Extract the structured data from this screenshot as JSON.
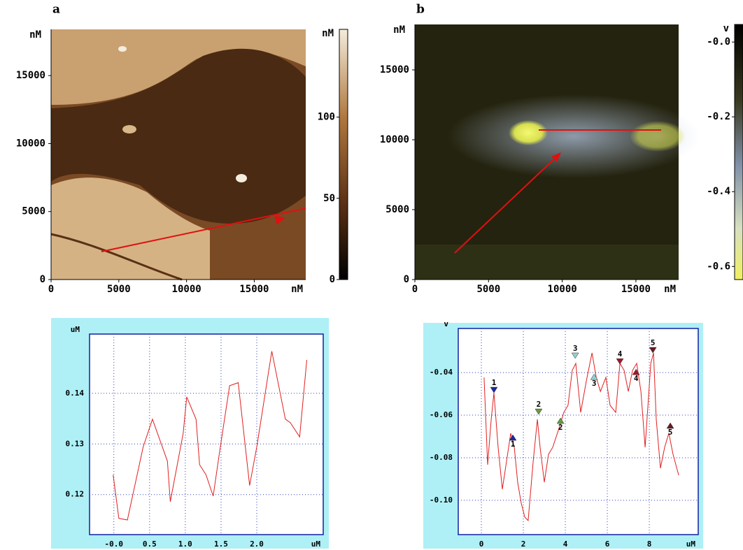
{
  "chart_data": [
    {
      "type": "image",
      "panel": "a",
      "x_label": "nM",
      "y_label": "nM",
      "xlim": [
        0,
        18800
      ],
      "ylim": [
        0,
        18400
      ],
      "xticks": [
        0,
        5000,
        10000,
        15000
      ],
      "yticks": [
        0,
        5000,
        10000,
        15000
      ],
      "colorbar": {
        "label": "nM",
        "clim": [
          0,
          154
        ],
        "ticks": [
          0,
          50,
          100
        ]
      }
    },
    {
      "type": "image",
      "panel": "b",
      "x_label": "nM",
      "y_label": "nM",
      "xlim": [
        0,
        17900
      ],
      "ylim": [
        0,
        18250
      ],
      "xticks": [
        0,
        5000,
        10000,
        15000
      ],
      "yticks": [
        0,
        5000,
        10000,
        15000
      ],
      "colorbar": {
        "label": "v",
        "clim": [
          -0.635,
          0.047
        ],
        "ticks": [
          {
            "value": 0,
            "label": "-0.0"
          },
          -0.2,
          -0.4,
          -0.6
        ]
      }
    },
    {
      "type": "line",
      "x_label": "uM",
      "y_label": "uM",
      "color": "#e02020",
      "grid": true,
      "xlim": [
        -0.34,
        2.93
      ],
      "ylim": [
        0.1121,
        0.1517
      ],
      "xticks": [
        {
          "value": 0,
          "label": "-0.0"
        },
        0.5,
        {
          "value": 1,
          "label": "1.0"
        },
        1.5,
        {
          "value": 2,
          "label": "2.0"
        }
      ],
      "yticks": [
        0.12,
        0.13,
        0.14
      ],
      "x": [
        -0.01,
        0.07,
        0.19,
        0.41,
        0.54,
        0.75,
        0.79,
        0.97,
        1.02,
        1.15,
        1.2,
        1.29,
        1.39,
        1.49,
        1.62,
        1.74,
        1.9,
        2.0,
        2.21,
        2.4,
        2.47,
        2.6,
        2.7
      ],
      "values": [
        0.1239,
        0.1153,
        0.115,
        0.1294,
        0.1349,
        0.1266,
        0.1186,
        0.1321,
        0.1393,
        0.1349,
        0.1259,
        0.1239,
        0.1197,
        0.1294,
        0.1415,
        0.1421,
        0.1218,
        0.1294,
        0.1483,
        0.1349,
        0.1342,
        0.1314,
        0.1466
      ]
    },
    {
      "type": "line",
      "x_label": "uM",
      "y_label": "v",
      "color": "#e02020",
      "grid": true,
      "xlim": [
        -1.1,
        10.33
      ],
      "ylim": [
        -0.1161,
        -0.0193
      ],
      "xticks": [
        0,
        2,
        4,
        6,
        8
      ],
      "yticks": [
        -0.04,
        -0.06,
        -0.08,
        {
          "value": -0.1,
          "label": "-0.10"
        }
      ],
      "x": [
        0.13,
        0.3,
        0.47,
        0.6,
        0.8,
        1.0,
        1.2,
        1.4,
        1.57,
        1.73,
        1.9,
        2.07,
        2.23,
        2.47,
        2.67,
        2.8,
        3.0,
        3.2,
        3.4,
        3.73,
        3.93,
        4.13,
        4.33,
        4.5,
        4.73,
        5.0,
        5.27,
        5.47,
        5.67,
        5.93,
        6.13,
        6.4,
        6.6,
        6.8,
        7.0,
        7.2,
        7.4,
        7.6,
        7.8,
        8.07,
        8.2,
        8.33,
        8.53,
        8.73,
        8.93,
        9.13,
        9.4
      ],
      "values": [
        -0.0423,
        -0.0833,
        -0.062,
        -0.0495,
        -0.0751,
        -0.0948,
        -0.0817,
        -0.0685,
        -0.0751,
        -0.0915,
        -0.1013,
        -0.1079,
        -0.1095,
        -0.0817,
        -0.062,
        -0.0751,
        -0.0915,
        -0.0784,
        -0.0751,
        -0.0653,
        -0.0587,
        -0.0554,
        -0.039,
        -0.0357,
        -0.0587,
        -0.0439,
        -0.0308,
        -0.0423,
        -0.0489,
        -0.0423,
        -0.0554,
        -0.0587,
        -0.0357,
        -0.039,
        -0.0489,
        -0.039,
        -0.0357,
        -0.0489,
        -0.0751,
        -0.0357,
        -0.0308,
        -0.062,
        -0.0849,
        -0.0751,
        -0.0685,
        -0.0784,
        -0.0882
      ],
      "markers": [
        {
          "label": "1",
          "x": 0.6,
          "y": -0.0495,
          "shape": "down",
          "color": "#1a2aa0"
        },
        {
          "label": "1",
          "x": 1.5,
          "y": -0.0692,
          "shape": "up",
          "color": "#1a2aa0"
        },
        {
          "label": "2",
          "x": 2.73,
          "y": -0.0597,
          "shape": "down",
          "color": "#6a9a40"
        },
        {
          "label": "2",
          "x": 3.77,
          "y": -0.0613,
          "shape": "up",
          "color": "#6a9a40"
        },
        {
          "label": "3",
          "x": 4.47,
          "y": -0.0334,
          "shape": "down",
          "color": "#90d0d0"
        },
        {
          "label": "3",
          "x": 5.37,
          "y": -0.0407,
          "shape": "up",
          "color": "#90d0d0"
        },
        {
          "label": "4",
          "x": 6.6,
          "y": -0.0361,
          "shape": "down",
          "color": "#a01828"
        },
        {
          "label": "4",
          "x": 7.37,
          "y": -0.0384,
          "shape": "up",
          "color": "#a01828"
        },
        {
          "label": "5",
          "x": 8.17,
          "y": -0.0308,
          "shape": "down",
          "color": "#6a1a22"
        },
        {
          "label": "5",
          "x": 9.0,
          "y": -0.0636,
          "shape": "up",
          "color": "#6a1a22"
        }
      ]
    }
  ]
}
